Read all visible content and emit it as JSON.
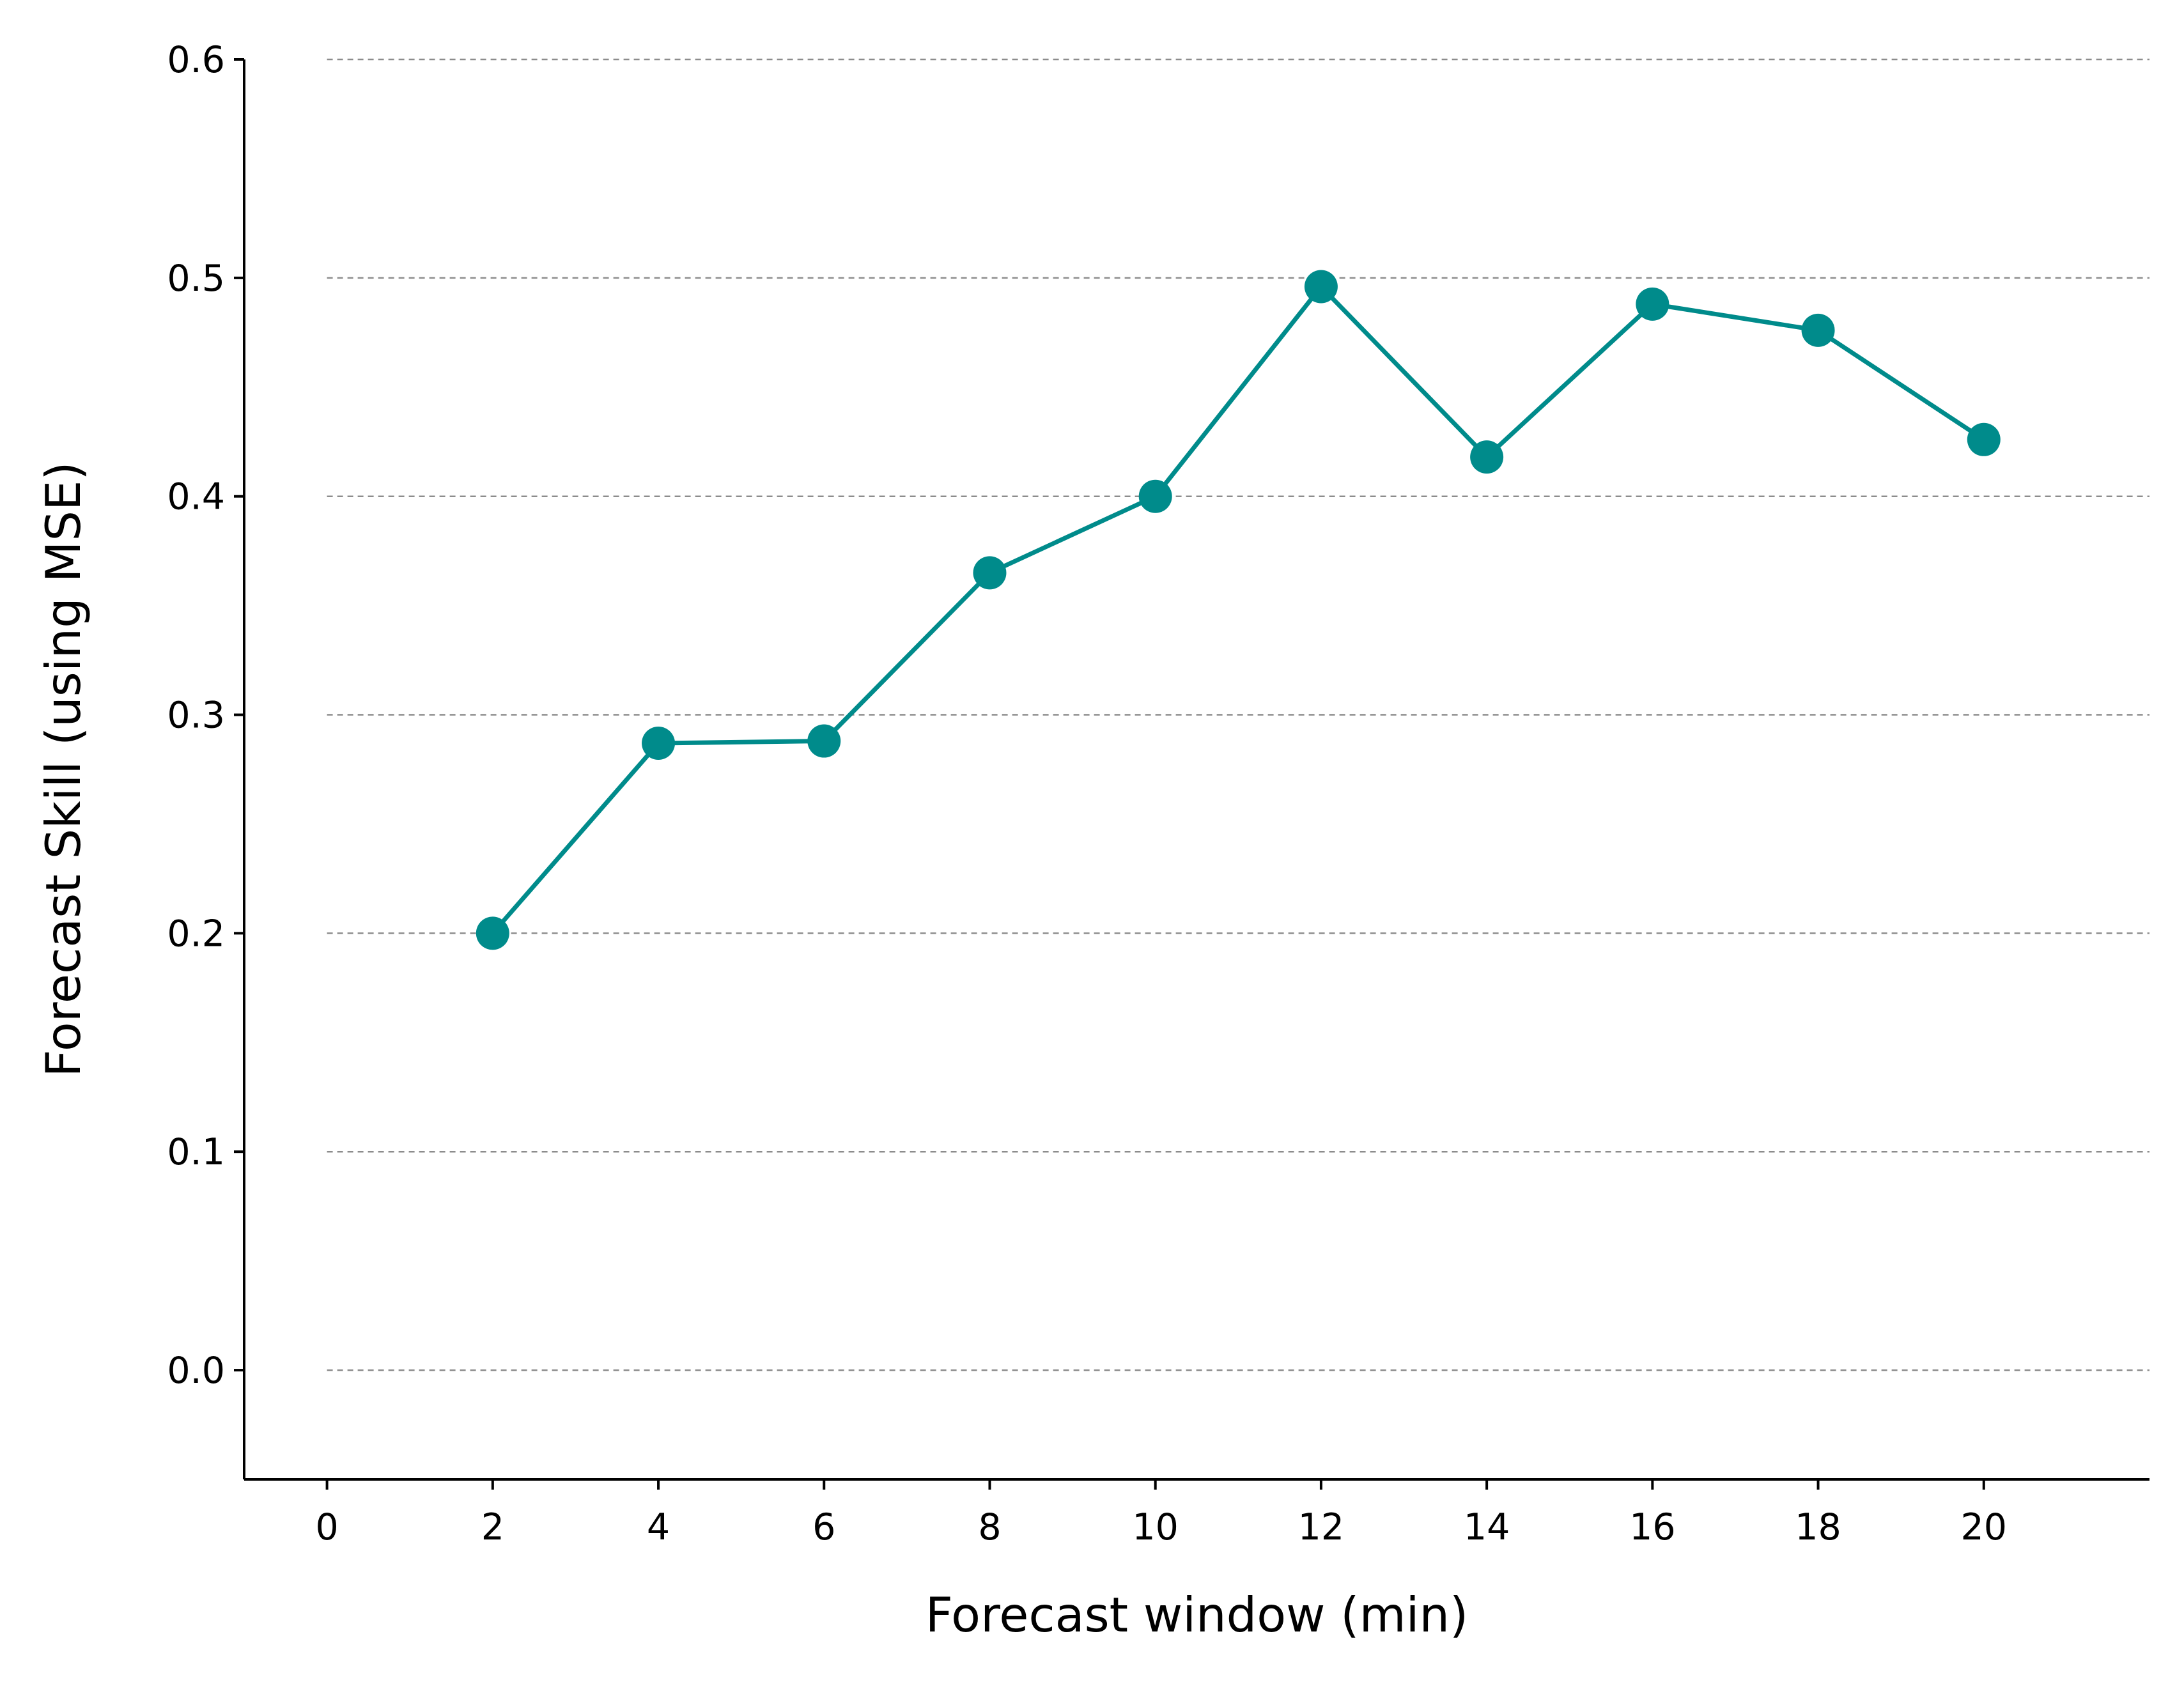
{
  "chart_data": {
    "type": "line",
    "title": "",
    "xlabel": "Forecast window (min)",
    "ylabel": "Forecast Skill (using MSE)",
    "xlim": [
      -1,
      22
    ],
    "ylim": [
      -0.05,
      0.6
    ],
    "xticks": [
      0,
      2,
      4,
      6,
      8,
      10,
      12,
      14,
      16,
      18,
      20
    ],
    "xtick_labels": [
      "0",
      "2",
      "4",
      "6",
      "8",
      "10",
      "12",
      "14",
      "16",
      "18",
      "20"
    ],
    "yticks": [
      0.0,
      0.1,
      0.2,
      0.3,
      0.4,
      0.5,
      0.6
    ],
    "ytick_labels": [
      "0.0",
      "0.1",
      "0.2",
      "0.3",
      "0.4",
      "0.5",
      "0.6"
    ],
    "grid": "horizontal dashed",
    "legend": "none",
    "series": [
      {
        "x": [
          2,
          4,
          6,
          8,
          10,
          12,
          14,
          16,
          18,
          20
        ],
        "values": [
          0.2,
          0.287,
          0.288,
          0.365,
          0.4,
          0.496,
          0.418,
          0.488,
          0.476,
          0.426
        ],
        "color": "#008b8b",
        "marker": "circle"
      }
    ]
  }
}
